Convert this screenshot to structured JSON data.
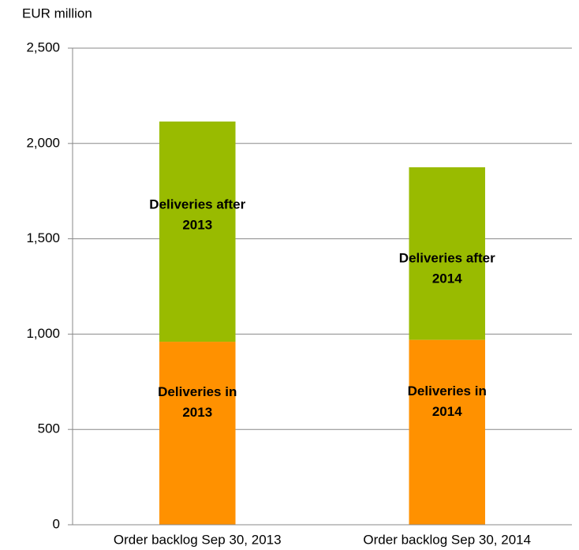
{
  "chart_data": {
    "type": "stacked_bar",
    "y_axis_label": "EUR million",
    "categories": [
      "Order backlog Sep 30, 2013",
      "Order backlog Sep 30, 2014"
    ],
    "series": [
      {
        "color": "#ff9100",
        "values": [
          960,
          970
        ],
        "labels": [
          [
            "Deliveries in",
            "2013"
          ],
          [
            "Deliveries in",
            "2014"
          ]
        ]
      },
      {
        "color": "#99bb00",
        "values": [
          1155,
          905
        ],
        "labels": [
          [
            "Deliveries after",
            "2013"
          ],
          [
            "Deliveries after",
            "2014"
          ]
        ]
      }
    ],
    "ylim": [
      0,
      2500
    ],
    "yticks": [
      0,
      {
        "value": 500,
        "label": "500"
      },
      {
        "value": 1000,
        "label": "1,000"
      },
      {
        "value": 1500,
        "label": "1,500"
      },
      {
        "value": 2000,
        "label": "2,000"
      },
      {
        "value": 2500,
        "label": "2,500"
      }
    ],
    "grid": true
  }
}
